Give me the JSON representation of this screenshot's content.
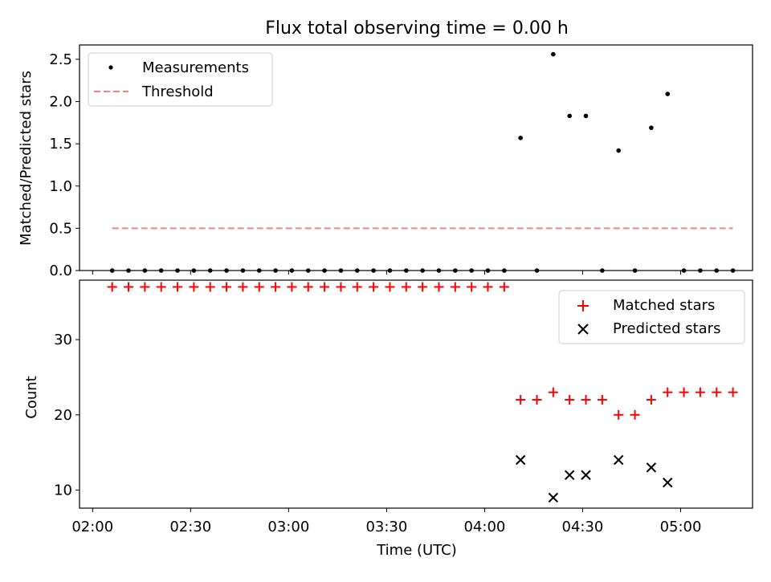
{
  "chart_data": [
    {
      "type": "scatter",
      "title": "Flux total observing time = 0.00 h",
      "xlabel": "",
      "ylabel": "Matched/Predicted stars",
      "ylim": [
        0,
        2.67
      ],
      "yticks": [
        "0.0",
        "0.5",
        "1.0",
        "1.5",
        "2.0",
        "2.5"
      ],
      "legend": {
        "placement": "top-left",
        "entries": [
          "Measurements",
          "Threshold"
        ]
      },
      "grid": false,
      "series": [
        {
          "name": "Measurements",
          "kind": "scatter",
          "color": "#000000",
          "x": [
            "02:06",
            "02:11",
            "02:16",
            "02:21",
            "02:26",
            "02:31",
            "02:36",
            "02:41",
            "02:46",
            "02:51",
            "02:56",
            "03:01",
            "03:06",
            "03:11",
            "03:16",
            "03:21",
            "03:26",
            "03:31",
            "03:36",
            "03:41",
            "03:46",
            "03:51",
            "03:56",
            "04:01",
            "04:06",
            "04:11",
            "04:16",
            "04:21",
            "04:26",
            "04:31",
            "04:36",
            "04:41",
            "04:46",
            "04:51",
            "04:56",
            "05:01",
            "05:06",
            "05:11",
            "05:16"
          ],
          "y": [
            0,
            0,
            0,
            0,
            0,
            0,
            0,
            0,
            0,
            0,
            0,
            0,
            0,
            0,
            0,
            0,
            0,
            0,
            0,
            0,
            0,
            0,
            0,
            0,
            0,
            1.57,
            0,
            2.56,
            1.83,
            1.83,
            0,
            1.42,
            0,
            1.69,
            2.09,
            0,
            0,
            0,
            0
          ]
        },
        {
          "name": "Threshold",
          "kind": "line",
          "style": "dashed",
          "color": "#ff7f7f",
          "x": [
            "02:06",
            "05:16"
          ],
          "y": [
            0.5,
            0.5
          ]
        }
      ]
    },
    {
      "type": "scatter",
      "title": "",
      "xlabel": "Time (UTC)",
      "ylabel": "Count",
      "ylim": [
        7.6,
        37.9
      ],
      "yticks": [
        "10",
        "20",
        "30"
      ],
      "xlim": [
        "01:56",
        "05:22"
      ],
      "xticks": [
        "02:00",
        "02:30",
        "03:00",
        "03:30",
        "04:00",
        "04:30",
        "05:00"
      ],
      "legend": {
        "placement": "top-right",
        "entries": [
          "Matched stars",
          "Predicted stars"
        ]
      },
      "grid": false,
      "series": [
        {
          "name": "Matched stars",
          "marker": "+",
          "color": "#ff0000",
          "x": [
            "02:06",
            "02:11",
            "02:16",
            "02:21",
            "02:26",
            "02:31",
            "02:36",
            "02:41",
            "02:46",
            "02:51",
            "02:56",
            "03:01",
            "03:06",
            "03:11",
            "03:16",
            "03:21",
            "03:26",
            "03:31",
            "03:36",
            "03:41",
            "03:46",
            "03:51",
            "03:56",
            "04:01",
            "04:06",
            "04:11",
            "04:16",
            "04:21",
            "04:26",
            "04:31",
            "04:36",
            "04:41",
            "04:46",
            "04:51",
            "04:56",
            "05:01",
            "05:06",
            "05:11",
            "05:16"
          ],
          "y": [
            37,
            37,
            37,
            37,
            37,
            37,
            37,
            37,
            37,
            37,
            37,
            37,
            37,
            37,
            37,
            37,
            37,
            37,
            37,
            37,
            37,
            37,
            37,
            37,
            37,
            22,
            22,
            23,
            22,
            22,
            22,
            20,
            20,
            22,
            23,
            23,
            23,
            23,
            23
          ]
        },
        {
          "name": "Predicted stars",
          "marker": "x",
          "color": "#000000",
          "x": [
            "04:11",
            "04:21",
            "04:26",
            "04:31",
            "04:41",
            "04:51",
            "04:56"
          ],
          "y": [
            14,
            9,
            12,
            12,
            14,
            13,
            11
          ]
        }
      ]
    }
  ]
}
